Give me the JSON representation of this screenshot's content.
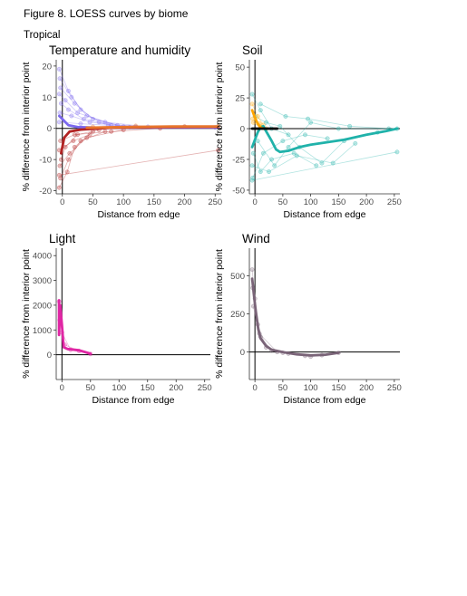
{
  "figure_title": "Figure 8. LOESS curves by biome",
  "subheading": "Tropical",
  "chart_data": [
    {
      "type": "line",
      "title": "Temperature and humidity",
      "xlabel": "Distance from edge",
      "ylabel": "% difference from interior point",
      "xlim": [
        -10,
        260
      ],
      "ylim": [
        -21,
        22
      ],
      "xticks": [
        0,
        50,
        100,
        150,
        200,
        250
      ],
      "yticks": [
        -20,
        -10,
        0,
        10,
        20
      ],
      "grid": false,
      "series": [
        {
          "color": "#7b68ee",
          "loess": [
            [
              -5,
              4
            ],
            [
              0,
              3
            ],
            [
              10,
              1
            ],
            [
              25,
              0.4
            ],
            [
              60,
              0.2
            ],
            [
              150,
              0.3
            ],
            [
              255,
              0.3
            ]
          ],
          "raw": [
            [
              [
                -5,
                19
              ],
              [
                10,
                12
              ],
              [
                30,
                6
              ],
              [
                60,
                2
              ],
              [
                120,
                0.5
              ],
              [
                250,
                0.3
              ]
            ],
            [
              [
                -4,
                16
              ],
              [
                15,
                10
              ],
              [
                40,
                4
              ],
              [
                90,
                1
              ]
            ],
            [
              [
                -3,
                13
              ],
              [
                20,
                8
              ],
              [
                50,
                3
              ],
              [
                100,
                0.6
              ]
            ],
            [
              [
                -5,
                11
              ],
              [
                5,
                9
              ],
              [
                25,
                5
              ],
              [
                70,
                2
              ],
              [
                140,
                0.5
              ]
            ],
            [
              [
                -2,
                8
              ],
              [
                10,
                6
              ],
              [
                35,
                3
              ],
              [
                80,
                1
              ]
            ],
            [
              [
                -4,
                5
              ],
              [
                15,
                4
              ],
              [
                45,
                2
              ],
              [
                110,
                0.4
              ]
            ],
            [
              [
                -5,
                2
              ],
              [
                30,
                1.5
              ],
              [
                75,
                1
              ],
              [
                200,
                0.5
              ]
            ]
          ]
        },
        {
          "color": "#b22222",
          "loess": [
            [
              -2,
              -8
            ],
            [
              3,
              -3
            ],
            [
              12,
              -1
            ],
            [
              30,
              -0.4
            ],
            [
              80,
              0.2
            ],
            [
              150,
              0.4
            ],
            [
              255,
              0.5
            ]
          ],
          "raw": [
            [
              [
                -5,
                -19
              ],
              [
                8,
                -14
              ],
              [
                20,
                -6
              ],
              [
                50,
                -1
              ]
            ],
            [
              [
                -3,
                -16
              ],
              [
                10,
                -10
              ],
              [
                30,
                -4
              ],
              [
                70,
                -1
              ]
            ],
            [
              [
                -4,
                -12
              ],
              [
                12,
                -8
              ],
              [
                40,
                -3
              ],
              [
                100,
                -0.5
              ]
            ],
            [
              [
                -2,
                -10
              ],
              [
                5,
                -6
              ],
              [
                25,
                -2
              ],
              [
                60,
                -0.5
              ]
            ],
            [
              [
                -5,
                -7
              ],
              [
                18,
                -4
              ],
              [
                45,
                -2
              ]
            ],
            [
              [
                -3,
                -4
              ],
              [
                20,
                -2
              ],
              [
                80,
                -1
              ],
              [
                160,
                0
              ]
            ],
            [
              [
                -5,
                -15
              ],
              [
                255,
                -7
              ]
            ]
          ]
        },
        {
          "color": "#e8752c",
          "loess": [
            [
              40,
              0.2
            ],
            [
              100,
              0.4
            ],
            [
              180,
              0.6
            ],
            [
              255,
              0.6
            ]
          ],
          "raw": [
            [
              [
                50,
                0.5
              ],
              [
                120,
                0.8
              ],
              [
                200,
                0.6
              ],
              [
                255,
                0.7
              ]
            ]
          ]
        }
      ]
    },
    {
      "type": "line",
      "title": "Soil",
      "xlabel": "Distance from edge",
      "ylabel": "% difference from interior point",
      "xlim": [
        -10,
        260
      ],
      "ylim": [
        -53,
        56
      ],
      "xticks": [
        0,
        50,
        100,
        150,
        200,
        250
      ],
      "yticks": [
        -50,
        -25,
        0,
        25,
        50
      ],
      "grid": false,
      "series": [
        {
          "color": "#20b2aa",
          "loess": [
            [
              -5,
              -15
            ],
            [
              0,
              -9
            ],
            [
              5,
              -3
            ],
            [
              10,
              1
            ],
            [
              15,
              2
            ],
            [
              20,
              -2
            ],
            [
              30,
              -10
            ],
            [
              38,
              -17
            ],
            [
              45,
              -19
            ],
            [
              60,
              -18
            ],
            [
              80,
              -15
            ],
            [
              100,
              -13
            ],
            [
              130,
              -11
            ],
            [
              160,
              -9
            ],
            [
              200,
              -5
            ],
            [
              235,
              -2
            ],
            [
              255,
              0
            ]
          ],
          "raw": [
            [
              [
                -5,
                28
              ],
              [
                10,
                15
              ],
              [
                30,
                0
              ],
              [
                60,
                -5
              ]
            ],
            [
              [
                -3,
                -20
              ],
              [
                10,
                -35
              ],
              [
                30,
                -25
              ],
              [
                70,
                -20
              ],
              [
                110,
                -30
              ]
            ],
            [
              [
                -4,
                -40
              ],
              [
                15,
                -20
              ],
              [
                50,
                -10
              ],
              [
                90,
                -5
              ],
              [
                130,
                -8
              ]
            ],
            [
              [
                0,
                10
              ],
              [
                20,
                5
              ],
              [
                45,
                2
              ],
              [
                80,
                -15
              ],
              [
                120,
                -28
              ],
              [
                160,
                -10
              ],
              [
                220,
                -3
              ]
            ],
            [
              [
                5,
                -10
              ],
              [
                35,
                -30
              ],
              [
                60,
                -15
              ],
              [
                100,
                5
              ],
              [
                150,
                0
              ],
              [
                255,
                0
              ]
            ],
            [
              [
                -5,
                -30
              ],
              [
                25,
                -35
              ],
              [
                75,
                -22
              ],
              [
                140,
                -28
              ],
              [
                180,
                -12
              ]
            ],
            [
              [
                10,
                20
              ],
              [
                55,
                10
              ],
              [
                95,
                8
              ],
              [
                170,
                2
              ],
              [
                240,
                0
              ]
            ],
            [
              [
                -5,
                -42
              ],
              [
                255,
                -19
              ]
            ]
          ]
        },
        {
          "color": "#ffa500",
          "loess": [
            [
              -5,
              15
            ],
            [
              0,
              9
            ],
            [
              5,
              4
            ],
            [
              10,
              1
            ],
            [
              15,
              0
            ]
          ],
          "raw": [
            [
              [
                -5,
                20
              ],
              [
                5,
                10
              ],
              [
                15,
                3
              ]
            ],
            [
              [
                -4,
                8
              ],
              [
                8,
                4
              ],
              [
                20,
                0
              ]
            ],
            [
              [
                -3,
                5
              ],
              [
                10,
                1
              ]
            ]
          ]
        },
        {
          "color": "#000000",
          "loess": [
            [
              -5,
              0
            ],
            [
              40,
              0
            ]
          ],
          "raw": []
        }
      ]
    },
    {
      "type": "line",
      "title": "Light",
      "xlabel": "Distance from edge",
      "ylabel": "% difference from interior point",
      "xlim": [
        -10,
        260
      ],
      "ylim": [
        -1000,
        4300
      ],
      "xticks": [
        0,
        50,
        100,
        150,
        200,
        250
      ],
      "yticks": [
        0,
        1000,
        2000,
        3000,
        4000
      ],
      "grid": false,
      "series": [
        {
          "color": "#e026a4",
          "loess": [
            [
              -5,
              2200
            ],
            [
              -5,
              800
            ],
            [
              -3,
              2000
            ],
            [
              0,
              1200
            ],
            [
              3,
              300
            ],
            [
              10,
              230
            ],
            [
              30,
              180
            ],
            [
              50,
              40
            ]
          ],
          "raw": [
            [
              [
                -5,
                2150
              ],
              [
                0,
                900
              ],
              [
                15,
                200
              ],
              [
                50,
                30
              ]
            ],
            [
              [
                -4,
                1400
              ],
              [
                5,
                400
              ],
              [
                30,
                150
              ]
            ]
          ]
        }
      ]
    },
    {
      "type": "line",
      "title": "Wind",
      "xlabel": "Distance from edge",
      "ylabel": "% difference from interior point",
      "xlim": [
        -10,
        260
      ],
      "ylim": [
        -180,
        680
      ],
      "xticks": [
        0,
        50,
        100,
        150,
        200,
        250
      ],
      "yticks": [
        0,
        250,
        500
      ],
      "grid": false,
      "series": [
        {
          "color": "#7a6478",
          "loess": [
            [
              -5,
              480
            ],
            [
              -2,
              380
            ],
            [
              2,
              250
            ],
            [
              6,
              150
            ],
            [
              10,
              90
            ],
            [
              20,
              40
            ],
            [
              30,
              15
            ],
            [
              50,
              0
            ],
            [
              75,
              -15
            ],
            [
              100,
              -22
            ],
            [
              125,
              -18
            ],
            [
              150,
              -5
            ]
          ],
          "raw": [
            [
              [
                -5,
                540
              ],
              [
                0,
                350
              ],
              [
                10,
                100
              ],
              [
                30,
                10
              ],
              [
                60,
                -10
              ],
              [
                100,
                -30
              ],
              [
                150,
                -5
              ]
            ],
            [
              [
                -4,
                420
              ],
              [
                5,
                180
              ],
              [
                20,
                30
              ],
              [
                50,
                -5
              ],
              [
                90,
                -25
              ]
            ],
            [
              [
                -3,
                300
              ],
              [
                8,
                120
              ],
              [
                40,
                0
              ],
              [
                120,
                -20
              ]
            ]
          ]
        }
      ]
    }
  ]
}
